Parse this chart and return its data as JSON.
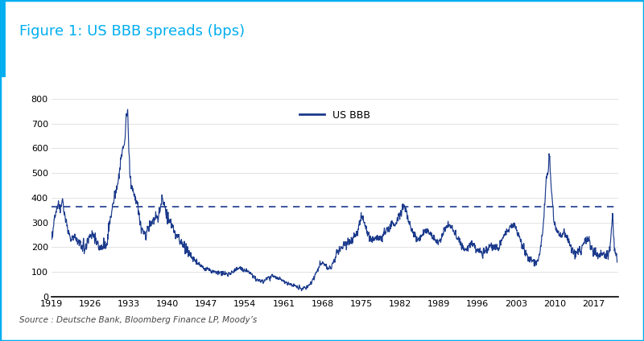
{
  "title": "Figure 1: US BBB spreads (bps)",
  "title_color": "#00AEEF",
  "legend_label": "US BBB",
  "source_text": "Source : Deutsche Bank, Bloomberg Finance LP, Moody’s",
  "line_color": "#1B3A8C",
  "dashed_line_color": "#1B3A8C",
  "dashed_line_value": 365,
  "background_color": "#FFFFFF",
  "border_color": "#00AEEF",
  "ylim": [
    0,
    800
  ],
  "yticks": [
    0,
    100,
    200,
    300,
    400,
    500,
    600,
    700,
    800
  ],
  "xtick_years": [
    1919,
    1926,
    1933,
    1940,
    1947,
    1954,
    1961,
    1968,
    1975,
    1982,
    1989,
    1996,
    2003,
    2010,
    2017
  ],
  "start_year": 1919,
  "end_year": 2021
}
